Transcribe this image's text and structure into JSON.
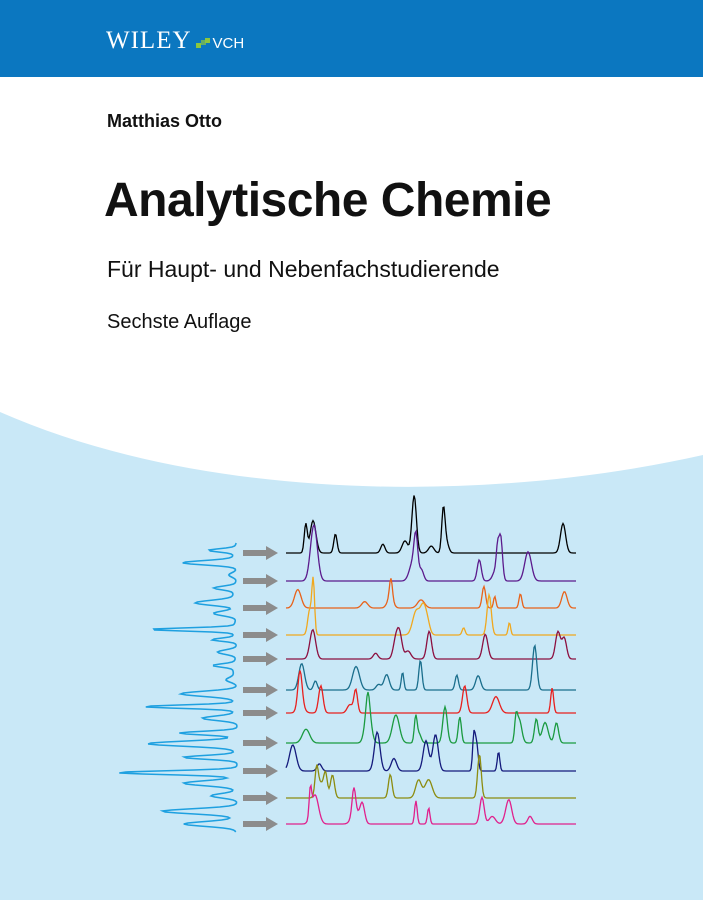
{
  "publisher": {
    "logo_text": "WILEY",
    "logo_suffix": "VCH",
    "brand_color": "#0b77c0",
    "accent_color": "#8cc63f"
  },
  "book": {
    "author": "Matthias Otto",
    "title": "Analytische Chemie",
    "subtitle": "Für Haupt- und Nebenfachstudierende",
    "edition": "Sechste Auflage"
  },
  "illustration": {
    "background_color": "#c9e8f7",
    "source_trace_color": "#1ea0e0",
    "arrow_color": "#8c8c8c",
    "trace_colors": [
      "#000000",
      "#5b1a8c",
      "#e8621a",
      "#f0a81e",
      "#8c1040",
      "#1a6e8c",
      "#e8201e",
      "#1a9a40",
      "#141a7c",
      "#8c8c10",
      "#e0208c"
    ]
  }
}
